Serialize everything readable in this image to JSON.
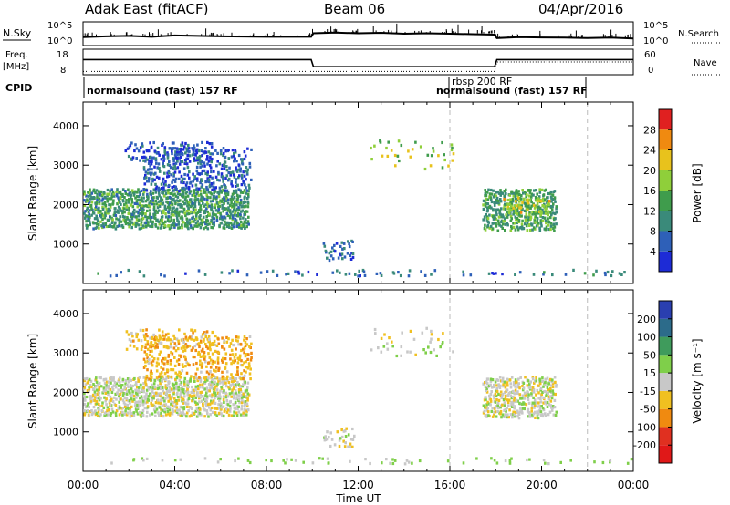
{
  "header": {
    "station": "Adak East (fitACF)",
    "beam": "Beam 06",
    "date": "04/Apr/2016"
  },
  "labels": {
    "nsky": "N.Sky",
    "nsky_ticks": [
      "10^5",
      "10^0"
    ],
    "nsearch": "N.Search",
    "freq": "Freq.",
    "freq_unit": "[MHz]",
    "freq_ticks": [
      "18",
      "8"
    ],
    "nave": "Nave",
    "nave_ticks": [
      "60",
      "0"
    ],
    "cpid": "CPID",
    "x_title": "Time UT"
  },
  "cpid_segments": [
    {
      "label": "normalsound (fast) 157 RF",
      "start": 0,
      "end": 16
    },
    {
      "label": "rbsp 200 RF",
      "start": 16,
      "end": 22
    },
    {
      "label": "normalsound (fast) 157 RF",
      "start": 16,
      "end": 22
    }
  ],
  "colorbars": {
    "power": {
      "label": "Power [dB]",
      "ticks": [
        "4",
        "8",
        "12",
        "16",
        "20",
        "24",
        "28"
      ],
      "colors": [
        "#1d2bd6",
        "#2e60b8",
        "#3a8a7a",
        "#3f9c4c",
        "#8fcf3a",
        "#e8c21c",
        "#f08a10",
        "#e02020"
      ]
    },
    "velocity": {
      "label": "Velocity [m s⁻¹]",
      "ticks": [
        "200",
        "100",
        "50",
        "15",
        "-15",
        "-50",
        "-100",
        "-200"
      ],
      "colors": [
        "#2a3fb0",
        "#2c6b8a",
        "#3f9b5c",
        "#7fcf4a",
        "#c8c8c8",
        "#f0c020",
        "#f08a10",
        "#e03020",
        "#e01818"
      ]
    }
  },
  "chart_data": [
    {
      "type": "line",
      "title": "N.Sky / N.Search",
      "x": [
        0,
        1,
        2,
        3,
        4,
        5,
        6,
        7,
        8,
        9,
        9.95,
        10.05,
        11,
        12,
        13,
        14,
        15,
        16,
        17,
        17.95,
        18.05,
        19,
        20,
        21,
        22,
        23,
        24
      ],
      "series": [
        {
          "name": "N.Sky",
          "values": [
            0.34,
            0.38,
            0.4,
            0.36,
            0.42,
            0.4,
            0.38,
            0.37,
            0.36,
            0.36,
            0.36,
            0.52,
            0.55,
            0.52,
            0.54,
            0.5,
            0.52,
            0.5,
            0.48,
            0.46,
            0.3,
            0.34,
            0.33,
            0.32,
            0.3,
            0.32,
            0.28
          ]
        }
      ],
      "ylim": [
        0,
        1
      ]
    },
    {
      "type": "line",
      "title": "Freq. / Nave",
      "x": [
        0,
        9.95,
        10.05,
        17.95,
        18.05,
        24
      ],
      "series": [
        {
          "name": "Freq.",
          "values": [
            14,
            14,
            11,
            11,
            14,
            14
          ]
        },
        {
          "name": "Nave",
          "values": [
            9,
            9,
            9,
            9,
            13,
            13
          ]
        }
      ],
      "ylim": [
        8,
        18
      ]
    },
    {
      "type": "heatmap",
      "title": "Power",
      "xlabel": "",
      "ylabel": "Slant Range [km]",
      "xlim": [
        0,
        24
      ],
      "ylim": [
        0,
        4600
      ],
      "y_ticks": [
        1000,
        2000,
        3000,
        4000
      ],
      "x_ticks": [
        "00:00",
        "04:00",
        "08:00",
        "12:00",
        "16:00",
        "20:00",
        "00:00"
      ],
      "dashed_markers": [
        16,
        22
      ],
      "clusters": [
        {
          "t0": 0.0,
          "t1": 7.2,
          "r0": 1350,
          "r1": 2350,
          "value": 12,
          "density": 0.9
        },
        {
          "t0": 2.6,
          "t1": 7.3,
          "r0": 2300,
          "r1": 3400,
          "value": 6,
          "density": 0.55
        },
        {
          "t0": 1.8,
          "t1": 5.6,
          "r0": 3050,
          "r1": 3550,
          "value": 5,
          "density": 0.35
        },
        {
          "t0": 10.4,
          "t1": 11.8,
          "r0": 550,
          "r1": 1050,
          "value": 6,
          "density": 0.4
        },
        {
          "t0": 12.5,
          "t1": 16.2,
          "r0": 2850,
          "r1": 3600,
          "value": 18,
          "density": 0.12
        },
        {
          "t0": 17.4,
          "t1": 20.6,
          "r0": 1300,
          "r1": 2350,
          "value": 13,
          "density": 0.85
        },
        {
          "t0": 18.3,
          "t1": 20.3,
          "r0": 1700,
          "r1": 2150,
          "value": 20,
          "density": 0.45
        },
        {
          "t0": 0.0,
          "t1": 24.0,
          "r0": 150,
          "r1": 300,
          "value": 8,
          "density": 0.18
        }
      ]
    },
    {
      "type": "heatmap",
      "title": "Velocity",
      "xlabel": "Time UT",
      "ylabel": "Slant Range [km]",
      "xlim": [
        0,
        24
      ],
      "ylim": [
        0,
        4600
      ],
      "y_ticks": [
        1000,
        2000,
        3000,
        4000
      ],
      "x_ticks": [
        "00:00",
        "04:00",
        "08:00",
        "12:00",
        "16:00",
        "20:00",
        "00:00"
      ],
      "dashed_markers": [
        16,
        22
      ],
      "clusters": [
        {
          "t0": 0.0,
          "t1": 7.2,
          "r0": 1350,
          "r1": 2350,
          "value": 0,
          "density": 0.85
        },
        {
          "t0": 2.6,
          "t1": 7.3,
          "r0": 2300,
          "r1": 3400,
          "value": -40,
          "density": 0.45
        },
        {
          "t0": 1.8,
          "t1": 5.6,
          "r0": 3050,
          "r1": 3550,
          "value": -30,
          "density": 0.3
        },
        {
          "t0": 10.4,
          "t1": 11.8,
          "r0": 550,
          "r1": 1050,
          "value": 0,
          "density": 0.3
        },
        {
          "t0": 12.5,
          "t1": 16.2,
          "r0": 2850,
          "r1": 3600,
          "value": 0,
          "density": 0.12
        },
        {
          "t0": 17.4,
          "t1": 20.6,
          "r0": 1300,
          "r1": 2350,
          "value": 0,
          "density": 0.8
        },
        {
          "t0": 0.0,
          "t1": 24.0,
          "r0": 150,
          "r1": 300,
          "value": 20,
          "density": 0.15
        }
      ]
    }
  ]
}
